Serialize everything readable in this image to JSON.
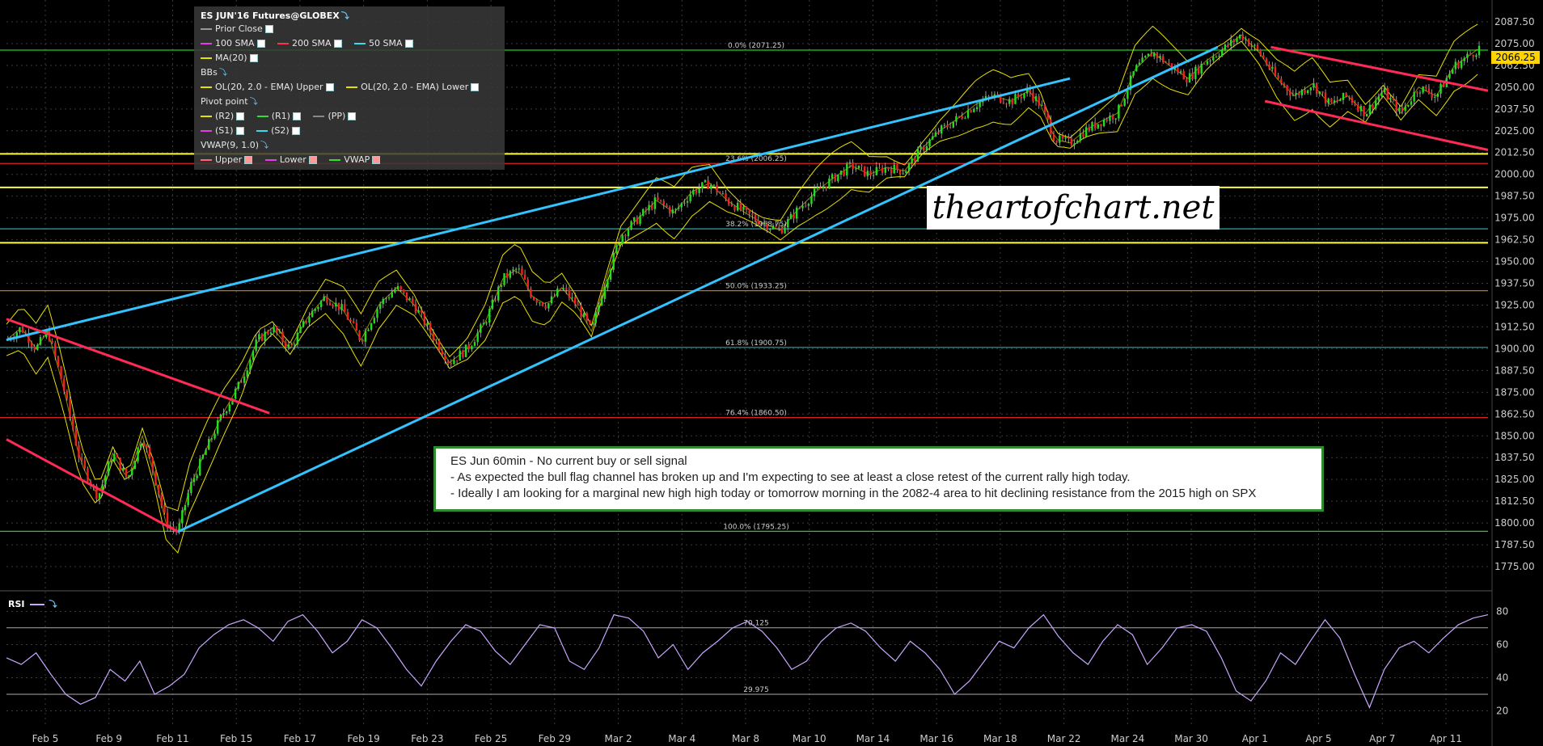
{
  "legend": {
    "title": "ES JUN'16 Futures@GLOBEX",
    "prior_close": "Prior Close",
    "sma100": "100 SMA",
    "sma200": "200 SMA",
    "sma50": "50 SMA",
    "ma20": "MA(20)",
    "bbs": "BBs",
    "ol_upper": "OL(20, 2.0 - EMA) Upper",
    "ol_lower": "OL(20, 2.0 - EMA) Lower",
    "pivot_point": "Pivot point",
    "r2": "(R2)",
    "r1": "(R1)",
    "pp": "(PP)",
    "s1": "(S1)",
    "s2": "(S2)",
    "vwap_title": "VWAP(9, 1.0)",
    "vwap_upper": "Upper",
    "vwap_lower": "Lower",
    "vwap": "VWAP"
  },
  "watermark": "theartofchart.net",
  "note": {
    "line1": "ES Jun 60min - No current buy or sell signal",
    "line2": "- As expected the bull flag channel has broken up and I'm expecting to see at least a close retest of the current rally high today.",
    "line3": "- Ideally I am looking for a marginal new high high today or tomorrow morning in the 2082-4 area to hit declining resistance from the 2015 high on SPX"
  },
  "last_price": "2066.25",
  "rsi_label": "RSI",
  "colors": {
    "background": "#000000",
    "grid": "#3a3a3a",
    "channel": "#33c3ff",
    "downtrend": "#ff2a55",
    "bollinger": "#e8e000",
    "up_candle": "#22dd22",
    "down_candle": "#ee2222",
    "rsi": "#c9a7ff"
  },
  "chart_data": [
    {
      "type": "candlestick",
      "title": "ES JUN'16 Futures@GLOBEX",
      "ylim": [
        1762.5,
        2100
      ],
      "y_ticks": [
        "2087.50",
        "2075.00",
        "2062.50",
        "2050.00",
        "2037.50",
        "2025.00",
        "2012.50",
        "2000.00",
        "1987.50",
        "1975.00",
        "1962.50",
        "1950.00",
        "1937.50",
        "1925.00",
        "1912.50",
        "1900.00",
        "1887.50",
        "1875.00",
        "1862.50",
        "1850.00",
        "1837.50",
        "1825.00",
        "1812.50",
        "1800.00",
        "1787.50",
        "1775.00"
      ],
      "x_ticks": [
        "Feb 5",
        "Feb 9",
        "Feb 11",
        "Feb 15",
        "Feb 17",
        "Feb 19",
        "Feb 23",
        "Feb 25",
        "Feb 29",
        "Mar 2",
        "Mar 4",
        "Mar 8",
        "Mar 10",
        "Mar 14",
        "Mar 16",
        "Mar 18",
        "Mar 22",
        "Mar 24",
        "Mar 30",
        "Apr 1",
        "Apr 5",
        "Apr 7",
        "Apr 11"
      ],
      "price_path": [
        [
          0,
          1905
        ],
        [
          10,
          1912
        ],
        [
          20,
          1900
        ],
        [
          28,
          1910
        ],
        [
          38,
          1880
        ],
        [
          50,
          1835
        ],
        [
          62,
          1815
        ],
        [
          72,
          1840
        ],
        [
          82,
          1825
        ],
        [
          92,
          1850
        ],
        [
          100,
          1828
        ],
        [
          108,
          1800
        ],
        [
          116,
          1795
        ],
        [
          124,
          1820
        ],
        [
          134,
          1840
        ],
        [
          146,
          1862
        ],
        [
          158,
          1880
        ],
        [
          170,
          1905
        ],
        [
          180,
          1912
        ],
        [
          192,
          1900
        ],
        [
          204,
          1918
        ],
        [
          216,
          1930
        ],
        [
          228,
          1922
        ],
        [
          240,
          1905
        ],
        [
          252,
          1925
        ],
        [
          264,
          1935
        ],
        [
          276,
          1925
        ],
        [
          288,
          1908
        ],
        [
          300,
          1892
        ],
        [
          312,
          1900
        ],
        [
          324,
          1915
        ],
        [
          336,
          1940
        ],
        [
          346,
          1946
        ],
        [
          356,
          1930
        ],
        [
          366,
          1925
        ],
        [
          376,
          1935
        ],
        [
          386,
          1925
        ],
        [
          396,
          1910
        ],
        [
          406,
          1940
        ],
        [
          416,
          1965
        ],
        [
          428,
          1975
        ],
        [
          440,
          1985
        ],
        [
          452,
          1978
        ],
        [
          464,
          1990
        ],
        [
          476,
          1995
        ],
        [
          488,
          1985
        ],
        [
          500,
          1978
        ],
        [
          512,
          1972
        ],
        [
          524,
          1968
        ],
        [
          536,
          1980
        ],
        [
          548,
          1990
        ],
        [
          560,
          1998
        ],
        [
          572,
          2005
        ],
        [
          584,
          2000
        ],
        [
          596,
          2004
        ],
        [
          608,
          2002
        ],
        [
          620,
          2015
        ],
        [
          632,
          2025
        ],
        [
          644,
          2032
        ],
        [
          656,
          2040
        ],
        [
          668,
          2045
        ],
        [
          680,
          2042
        ],
        [
          692,
          2048
        ],
        [
          700,
          2040
        ],
        [
          710,
          2020
        ],
        [
          720,
          2018
        ],
        [
          730,
          2025
        ],
        [
          740,
          2030
        ],
        [
          752,
          2035
        ],
        [
          764,
          2060
        ],
        [
          776,
          2070
        ],
        [
          788,
          2062
        ],
        [
          800,
          2055
        ],
        [
          812,
          2065
        ],
        [
          824,
          2072
        ],
        [
          836,
          2080
        ],
        [
          848,
          2070
        ],
        [
          860,
          2055
        ],
        [
          872,
          2045
        ],
        [
          884,
          2052
        ],
        [
          896,
          2040
        ],
        [
          908,
          2045
        ],
        [
          920,
          2035
        ],
        [
          932,
          2048
        ],
        [
          944,
          2035
        ],
        [
          956,
          2050
        ],
        [
          968,
          2045
        ],
        [
          980,
          2062
        ],
        [
          990,
          2068
        ],
        [
          998,
          2073
        ]
      ],
      "horizontal_levels": [
        {
          "label": "0.0% (2071.25)",
          "value": 2071.25,
          "color": "#22cc22"
        },
        {
          "label": "23.6% (2006.25)",
          "value": 2006.25,
          "color": "#dd2222"
        },
        {
          "label": "38.2% (1968.75)",
          "value": 1968.75,
          "color": "#22aaaa"
        },
        {
          "label": "50.0% (1933.25)",
          "value": 1933.25,
          "color": "#d08a00"
        },
        {
          "label": "61.8% (1900.75)",
          "value": 1900.75,
          "color": "#22aaaa"
        },
        {
          "label": "76.4% (1860.50)",
          "value": 1860.5,
          "color": "#dd2222"
        },
        {
          "label": "100.0% (1795.25)",
          "value": 1795.25,
          "color": "#22cc22"
        },
        {
          "label": "",
          "value": 2011.75,
          "color": "#ffff33"
        },
        {
          "label": "",
          "value": 1992.5,
          "color": "#ffff33"
        },
        {
          "label": "",
          "value": 1960.75,
          "color": "#ffff33"
        }
      ],
      "trendlines": [
        {
          "name": "",
          "color": "#33c3ff",
          "points": [
            [
              0,
              1905
            ],
            [
              720,
              2055
            ]
          ]
        },
        {
          "name": "",
          "color": "#33c3ff",
          "points": [
            [
              116,
              1795
            ],
            [
              820,
              2073
            ]
          ]
        },
        {
          "name": "",
          "color": "#ff2a55",
          "points": [
            [
              0,
              1917
            ],
            [
              178,
              1863
            ]
          ]
        },
        {
          "name": "",
          "color": "#ff2a55",
          "points": [
            [
              0,
              1848
            ],
            [
              116,
              1795
            ]
          ]
        },
        {
          "name": "",
          "color": "#ff2a55",
          "points": [
            [
              856,
              2073
            ],
            [
              1003,
              2048
            ]
          ]
        },
        {
          "name": "",
          "color": "#ff2a55",
          "points": [
            [
              852,
              2042
            ],
            [
              1003,
              2014
            ]
          ]
        }
      ]
    },
    {
      "type": "line",
      "title": "RSI",
      "ylim": [
        10,
        90
      ],
      "y_ticks": [
        "80",
        "60",
        "40",
        "20"
      ],
      "levels": [
        {
          "label": "70.125",
          "value": 70.125
        },
        {
          "label": "29.975",
          "value": 29.975
        }
      ],
      "values": [
        52,
        48,
        55,
        42,
        30,
        24,
        28,
        45,
        38,
        50,
        30,
        35,
        42,
        58,
        66,
        72,
        75,
        70,
        62,
        74,
        78,
        68,
        55,
        62,
        75,
        70,
        58,
        45,
        35,
        50,
        62,
        72,
        68,
        56,
        48,
        60,
        72,
        70,
        50,
        45,
        58,
        78,
        76,
        68,
        52,
        60,
        45,
        55,
        62,
        70,
        74,
        68,
        58,
        45,
        50,
        62,
        70,
        73,
        68,
        58,
        50,
        62,
        55,
        45,
        30,
        38,
        50,
        62,
        58,
        70,
        78,
        65,
        55,
        48,
        62,
        72,
        66,
        48,
        58,
        70,
        72,
        68,
        52,
        32,
        26,
        38,
        55,
        48,
        62,
        75,
        64,
        42,
        22,
        45,
        58,
        62,
        55,
        64,
        72,
        76,
        78
      ]
    }
  ]
}
